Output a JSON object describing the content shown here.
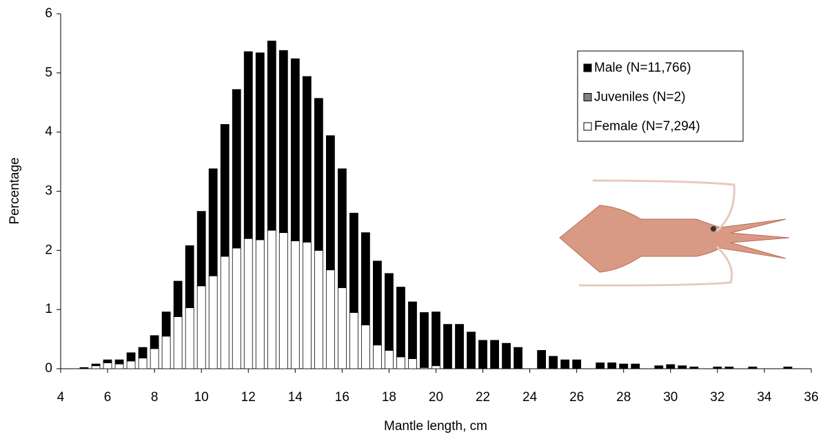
{
  "chart_data": {
    "type": "stacked_bar",
    "x_label": "Mantle length, cm",
    "y_label": "Percentage",
    "x": [
      5,
      5.5,
      6,
      6.5,
      7,
      7.5,
      8,
      8.5,
      9,
      9.5,
      10,
      10.5,
      11,
      11.5,
      12,
      12.5,
      13,
      13.5,
      14,
      14.5,
      15,
      15.5,
      16,
      16.5,
      17,
      17.5,
      18,
      18.5,
      19,
      19.5,
      20,
      20.5,
      21,
      21.5,
      22,
      22.5,
      23,
      23.5,
      24.5,
      25,
      25.5,
      26,
      27,
      27.5,
      28,
      28.5,
      29.5,
      30,
      30.5,
      31,
      32,
      32.5,
      33.5,
      35
    ],
    "series": [
      {
        "name": "Male (N=11,766)",
        "color": "#000000",
        "values": [
          0.01,
          0.03,
          0.05,
          0.07,
          0.14,
          0.18,
          0.22,
          0.41,
          0.6,
          1.05,
          1.26,
          1.81,
          2.23,
          2.68,
          3.16,
          3.16,
          3.2,
          3.08,
          3.08,
          2.8,
          2.57,
          2.27,
          2.01,
          1.68,
          1.56,
          1.42,
          1.3,
          1.18,
          0.96,
          0.93,
          0.91,
          0.75,
          0.75,
          0.62,
          0.48,
          0.48,
          0.43,
          0.36,
          0.31,
          0.21,
          0.15,
          0.15,
          0.1,
          0.1,
          0.08,
          0.08,
          0.05,
          0.07,
          0.05,
          0.03,
          0.03,
          0.03,
          0.03,
          0.03
        ]
      },
      {
        "name": "Juveniles (N=2)",
        "color": "#808080",
        "values": [
          0,
          0,
          0,
          0,
          0,
          0,
          0,
          0,
          0,
          0,
          0,
          0,
          0,
          0,
          0,
          0,
          0,
          0,
          0,
          0,
          0,
          0,
          0,
          0,
          0,
          0,
          0,
          0,
          0,
          0,
          0,
          0,
          0,
          0,
          0,
          0,
          0,
          0,
          0,
          0,
          0,
          0,
          0,
          0,
          0,
          0,
          0,
          0,
          0,
          0,
          0,
          0,
          0,
          0
        ]
      },
      {
        "name": "Female (N=7,294)",
        "color": "#ffffff",
        "values": [
          0.01,
          0.05,
          0.1,
          0.08,
          0.13,
          0.18,
          0.34,
          0.55,
          0.88,
          1.03,
          1.4,
          1.57,
          1.9,
          2.04,
          2.2,
          2.18,
          2.34,
          2.3,
          2.16,
          2.14,
          2.0,
          1.67,
          1.37,
          0.95,
          0.74,
          0.4,
          0.31,
          0.2,
          0.17,
          0.02,
          0.05,
          0,
          0,
          0,
          0,
          0,
          0,
          0,
          0,
          0,
          0,
          0,
          0,
          0,
          0,
          0,
          0,
          0,
          0,
          0,
          0,
          0,
          0,
          0
        ]
      }
    ],
    "xlim": [
      4,
      36
    ],
    "xticks": [
      4,
      6,
      8,
      10,
      12,
      14,
      16,
      18,
      20,
      22,
      24,
      26,
      28,
      30,
      32,
      34,
      36
    ],
    "ylim": [
      0,
      6
    ],
    "yticks": [
      0,
      1,
      2,
      3,
      4,
      5,
      6
    ],
    "grid": false,
    "legend": "upper right"
  }
}
